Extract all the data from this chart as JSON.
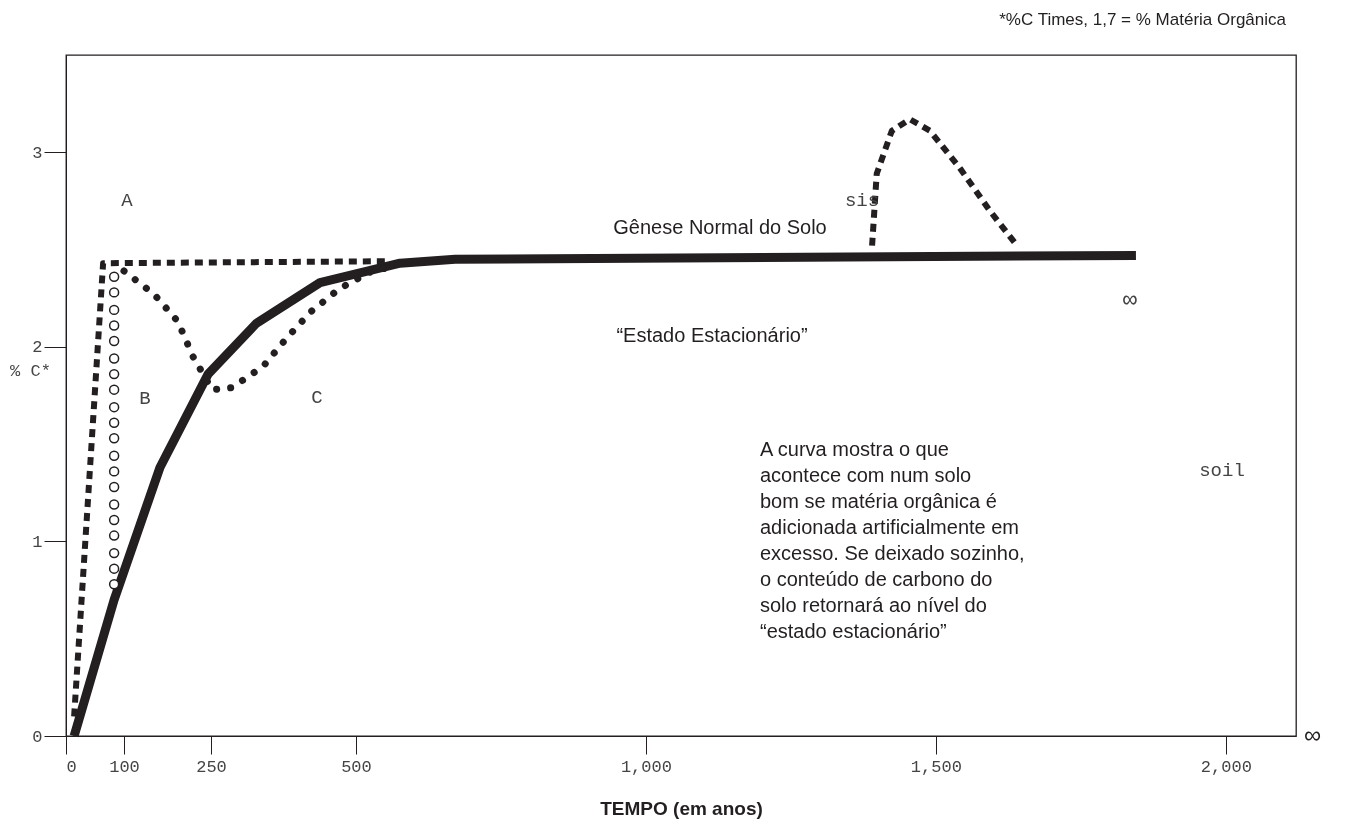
{
  "chart_data": {
    "type": "line",
    "xlabel": "TEMPO (em anos)",
    "ylabel": "% C*",
    "xlim": [
      0,
      2121
    ],
    "ylim": [
      0,
      3.5
    ],
    "xticks": [
      0,
      100,
      250,
      500,
      {
        "value": 1000,
        "label": "1,000"
      },
      {
        "value": 1500,
        "label": "1,500"
      },
      {
        "value": 2000,
        "label": "2,000"
      }
    ],
    "yticks": [
      0,
      1,
      2,
      3
    ],
    "grid": false,
    "series": [
      {
        "color": "#231f20",
        "line_style": "solid",
        "x": [
          14,
          83,
          162,
          245,
          328,
          438,
          576,
          671,
          1845
        ],
        "values": [
          0,
          0.7,
          1.38,
          1.86,
          2.12,
          2.33,
          2.43,
          2.45,
          2.47
        ]
      },
      {
        "color": "#231f20",
        "line_style": "dashed",
        "x": [
          14,
          64,
          550
        ],
        "values": [
          0.1,
          2.43,
          2.44
        ]
      },
      {
        "type": "scatter",
        "color": "#231f20",
        "marker": "circle",
        "x": [
          83,
          83,
          83,
          83,
          83,
          83,
          83,
          83,
          83,
          83,
          83,
          83,
          83,
          83,
          83,
          83,
          83,
          83,
          83,
          83
        ],
        "values": [
          2.36,
          2.28,
          2.19,
          2.11,
          2.03,
          1.94,
          1.86,
          1.78,
          1.69,
          1.61,
          1.53,
          1.44,
          1.36,
          1.28,
          1.19,
          1.11,
          1.03,
          0.94,
          0.86,
          0.78
        ]
      },
      {
        "color": "#231f20",
        "line_style": "dotted",
        "x": [
          100,
          152,
          193,
          219,
          252,
          286,
          340,
          379,
          422,
          472,
          528,
          560
        ],
        "values": [
          2.39,
          2.27,
          2.13,
          1.95,
          1.78,
          1.79,
          1.9,
          2.04,
          2.18,
          2.3,
          2.39,
          2.41
        ]
      },
      {
        "color": "#231f20",
        "line_style": "dashed",
        "x": [
          1390,
          1398,
          1424,
          1455,
          1490,
          1541,
          1593,
          1640
        ],
        "values": [
          2.52,
          2.89,
          3.11,
          3.17,
          3.11,
          2.92,
          2.7,
          2.52
        ]
      }
    ],
    "annotations": [
      "*%C Times, 1,7 = % Matéria Orgânica",
      "∞",
      "A",
      "B",
      "C",
      "Gênese Normal do Solo",
      "sis",
      "“Estado Estacionário”",
      "∞",
      "soil",
      "A curva mostra o que\nacontece com num solo\nbom se matéria orgânica é\nadicionada artificialmente em\nexcesso. Se deixado sozinho,\no conteúdo de carbono do\nsolo retornará ao nível do\n“estado estacionário”"
    ]
  }
}
